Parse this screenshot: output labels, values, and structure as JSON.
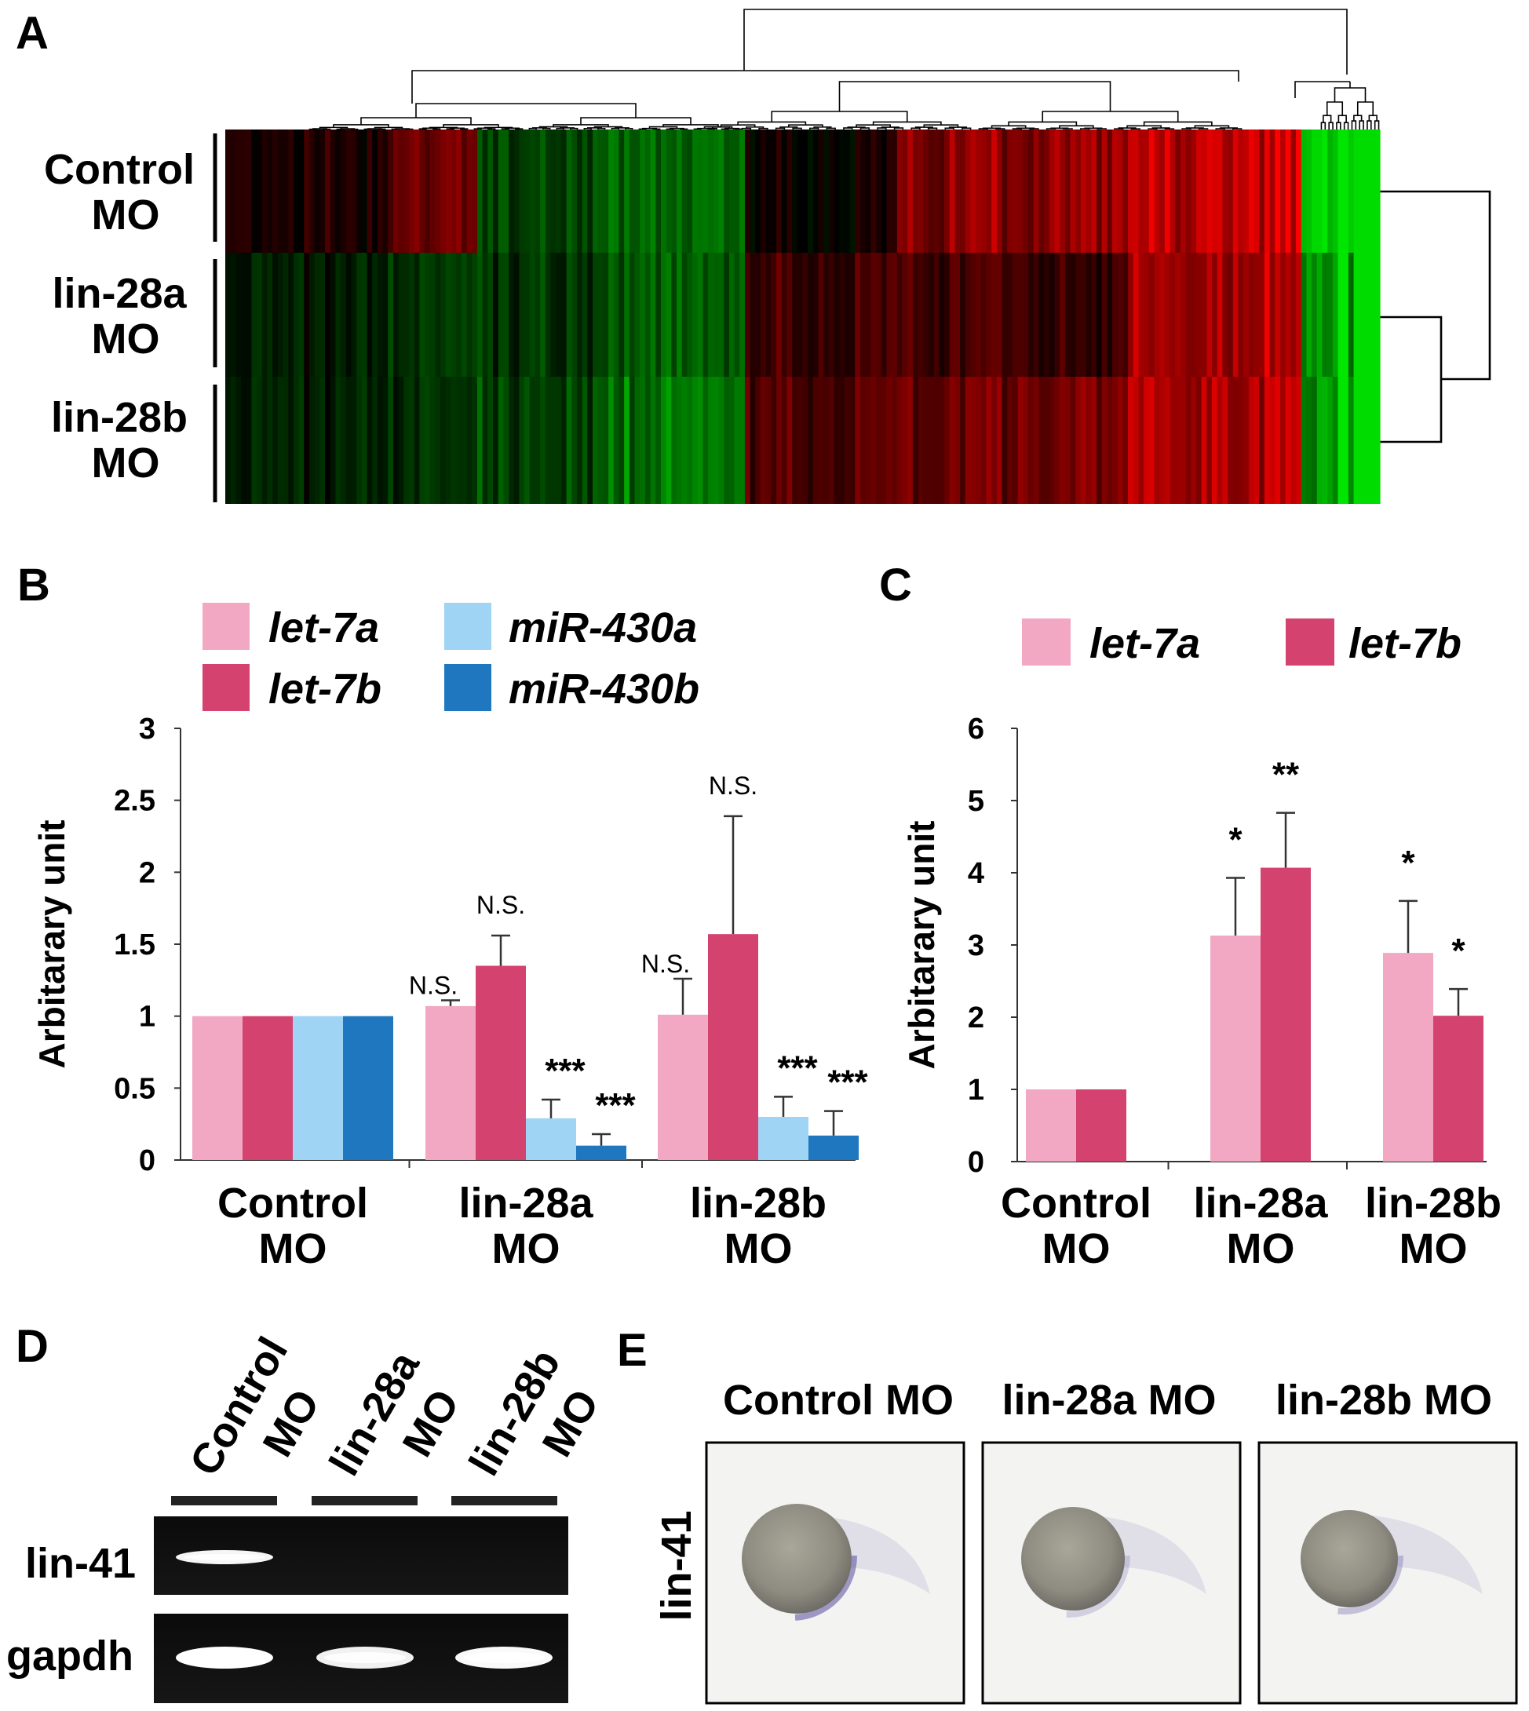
{
  "panels": {
    "a": "A",
    "b": "B",
    "c": "C",
    "d": "D",
    "e": "E"
  },
  "heatmap": {
    "row_labels": [
      {
        "line1": "Control",
        "line2": "MO"
      },
      {
        "line1": "lin-28a",
        "line2": "MO"
      },
      {
        "line1": "lin-28b",
        "line2": "MO"
      }
    ],
    "colors": {
      "high": "#ff1a1a",
      "low": "#1ad61a",
      "neutral": "#000000"
    }
  },
  "chart_data": [
    {
      "panel": "B",
      "type": "bar",
      "title": "",
      "xlabel": "",
      "ylabel": "Arbitarary unit",
      "ylim": [
        0,
        3
      ],
      "yticks": [
        "0",
        "0.5",
        "1",
        "1.5",
        "2",
        "2.5",
        "3"
      ],
      "grid": false,
      "legend_position": "top",
      "categories": [
        {
          "line1": "Control",
          "line2": "MO"
        },
        {
          "line1": "lin-28a",
          "line2": "MO"
        },
        {
          "line1": "lin-28b",
          "line2": "MO"
        }
      ],
      "series": [
        {
          "name": "let-7a",
          "color": "#f2a7c3",
          "values": [
            1,
            1.07,
            1.01
          ],
          "errors": [
            0,
            0.04,
            0.25
          ]
        },
        {
          "name": "let-7b",
          "color": "#d4436f",
          "values": [
            1,
            1.35,
            1.57
          ],
          "errors": [
            0,
            0.21,
            0.82
          ]
        },
        {
          "name": "miR-430a",
          "color": "#9fd4f5",
          "values": [
            1,
            0.29,
            0.3
          ],
          "errors": [
            0,
            0.13,
            0.14
          ]
        },
        {
          "name": "miR-430b",
          "color": "#1f78bf",
          "values": [
            1,
            0.1,
            0.17
          ],
          "errors": [
            0,
            0.08,
            0.17
          ]
        }
      ],
      "annotations": [
        [
          "",
          "",
          "",
          ""
        ],
        [
          "N.S.",
          "N.S.",
          "***",
          "***"
        ],
        [
          "N.S.",
          "N.S.",
          "***",
          "***"
        ]
      ]
    },
    {
      "panel": "C",
      "type": "bar",
      "title": "",
      "xlabel": "",
      "ylabel": "Arbitarary unit",
      "ylim": [
        0,
        6
      ],
      "yticks": [
        "0",
        "1",
        "2",
        "3",
        "4",
        "5",
        "6"
      ],
      "grid": false,
      "legend_position": "top",
      "categories": [
        {
          "line1": "Control",
          "line2": "MO"
        },
        {
          "line1": "lin-28a",
          "line2": "MO"
        },
        {
          "line1": "lin-28b",
          "line2": "MO"
        }
      ],
      "series": [
        {
          "name": "let-7a",
          "color": "#f2a7c3",
          "values": [
            1,
            3.13,
            2.89
          ],
          "errors": [
            0,
            0.8,
            0.72
          ]
        },
        {
          "name": "let-7b",
          "color": "#d4436f",
          "values": [
            1,
            4.07,
            2.02
          ],
          "errors": [
            0,
            0.76,
            0.37
          ]
        }
      ],
      "annotations": [
        [
          "",
          ""
        ],
        [
          "*",
          "**"
        ],
        [
          "*",
          "*"
        ]
      ]
    }
  ],
  "gel": {
    "lanes": [
      {
        "line1": "Control",
        "line2": "MO"
      },
      {
        "line1": "lin-28a",
        "line2": "MO"
      },
      {
        "line1": "lin-28b",
        "line2": "MO"
      }
    ],
    "rows": [
      {
        "label": "lin-41",
        "intensities": [
          0.9,
          0.05,
          0.03
        ]
      },
      {
        "label": "gapdh",
        "intensities": [
          1.0,
          0.85,
          0.95
        ]
      }
    ]
  },
  "ish": {
    "probe": "lin-41",
    "columns": [
      "Control MO",
      "lin-28a MO",
      "lin-28b MO"
    ],
    "staining": [
      0.8,
      0.3,
      0.45
    ]
  }
}
